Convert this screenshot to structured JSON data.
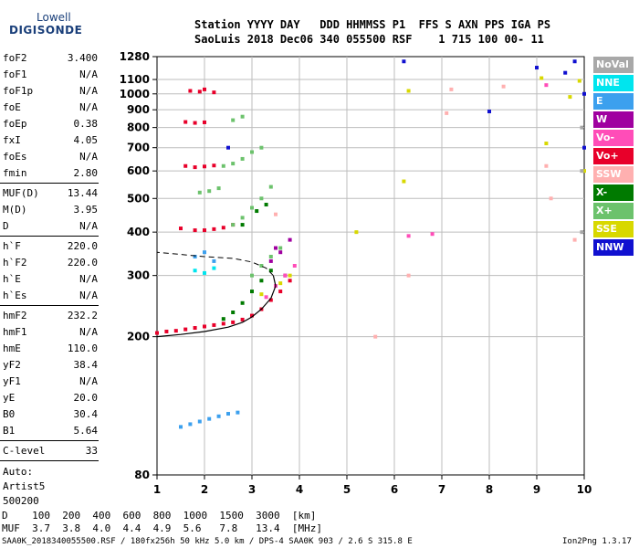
{
  "logo": {
    "line1": "Lowell",
    "line2": "DIGISONDE"
  },
  "header": {
    "row1": "Station YYYY DAY   DDD HHMMSS P1  FFS S AXN PPS IGA PS",
    "row2": "SaoLuis 2018 Dec06 340 055500 RSF    1 715 100 00- 11"
  },
  "params_group1": [
    {
      "name": "foF2",
      "value": "3.400"
    },
    {
      "name": "foF1",
      "value": "N/A"
    },
    {
      "name": "foF1p",
      "value": "N/A"
    },
    {
      "name": "foE",
      "value": "N/A"
    },
    {
      "name": "foEp",
      "value": "0.38"
    },
    {
      "name": "fxI",
      "value": "4.05"
    },
    {
      "name": "foEs",
      "value": "N/A"
    },
    {
      "name": "fmin",
      "value": "2.80"
    }
  ],
  "params_group2": [
    {
      "name": "MUF(D)",
      "value": "13.44"
    },
    {
      "name": "M(D)",
      "value": "3.95"
    },
    {
      "name": "D",
      "value": "N/A"
    }
  ],
  "params_group3": [
    {
      "name": "h`F",
      "value": "220.0"
    },
    {
      "name": "h`F2",
      "value": "220.0"
    },
    {
      "name": "h`E",
      "value": "N/A"
    },
    {
      "name": "h`Es",
      "value": "N/A"
    }
  ],
  "params_group4": [
    {
      "name": "hmF2",
      "value": "232.2"
    },
    {
      "name": "hmF1",
      "value": "N/A"
    },
    {
      "name": "hmE",
      "value": "110.0"
    },
    {
      "name": "yF2",
      "value": "38.4"
    },
    {
      "name": "yF1",
      "value": "N/A"
    },
    {
      "name": "yE",
      "value": "20.0"
    },
    {
      "name": "B0",
      "value": "30.4"
    },
    {
      "name": "B1",
      "value": "5.64"
    }
  ],
  "clevel": {
    "name": "C-level",
    "value": "33"
  },
  "auto_lines": [
    "Auto:",
    "Artist5",
    "500200"
  ],
  "bottom_table": {
    "row1": "D    100  200  400  600  800  1000  1500  3000  [km]",
    "row2": "MUF  3.7  3.8  4.0  4.4  4.9  5.6   7.8   13.4  [MHz]"
  },
  "footer": {
    "left": "SAA0K_2018340055500.RSF / 180fx256h 50 kHz 5.0 km / DPS-4 SAA0K 903 / 2.6 S 315.8 E",
    "right": "Ion2Png 1.3.17"
  },
  "legend": [
    {
      "label": "NoVal",
      "color": "#a8a8a8"
    },
    {
      "label": "NNE",
      "color": "#00e5ee"
    },
    {
      "label": "E",
      "color": "#3ca0ee"
    },
    {
      "label": "W",
      "color": "#a000a0"
    },
    {
      "label": "Vo-",
      "color": "#ff4db8"
    },
    {
      "label": "Vo+",
      "color": "#e8002a"
    },
    {
      "label": "SSW",
      "color": "#ffb0b0"
    },
    {
      "label": "X-",
      "color": "#007a00"
    },
    {
      "label": "X+",
      "color": "#6cc26c"
    },
    {
      "label": "SSE",
      "color": "#d8d800"
    },
    {
      "label": "NNW",
      "color": "#1010d0"
    }
  ],
  "chart_data": {
    "type": "scatter",
    "title": "",
    "xlabel": "",
    "ylabel": "",
    "xlim": [
      1,
      10
    ],
    "ylim": [
      80,
      1280
    ],
    "y_scale": "log",
    "x_ticks": [
      1,
      2,
      3,
      4,
      5,
      6,
      7,
      8,
      9,
      10
    ],
    "y_ticks": [
      80,
      200,
      300,
      400,
      500,
      600,
      700,
      800,
      900,
      1000,
      1100,
      1280
    ],
    "grid": true,
    "series": [
      {
        "color": "#e8002a",
        "points": [
          [
            1.0,
            205
          ],
          [
            1.2,
            207
          ],
          [
            1.4,
            208
          ],
          [
            1.6,
            210
          ],
          [
            1.8,
            212
          ],
          [
            2.0,
            214
          ],
          [
            2.2,
            216
          ],
          [
            2.4,
            218
          ],
          [
            2.6,
            220
          ],
          [
            2.8,
            224
          ],
          [
            3.0,
            230
          ],
          [
            3.2,
            240
          ],
          [
            3.4,
            255
          ],
          [
            3.6,
            270
          ],
          [
            3.8,
            290
          ],
          [
            1.5,
            410
          ],
          [
            1.8,
            405
          ],
          [
            2.0,
            405
          ],
          [
            2.2,
            408
          ],
          [
            2.4,
            412
          ],
          [
            2.6,
            420
          ],
          [
            1.6,
            620
          ],
          [
            1.8,
            615
          ],
          [
            2.0,
            618
          ],
          [
            2.2,
            622
          ],
          [
            1.6,
            830
          ],
          [
            1.8,
            825
          ],
          [
            2.0,
            828
          ],
          [
            1.7,
            1020
          ],
          [
            1.9,
            1015
          ],
          [
            2.0,
            1030
          ],
          [
            2.2,
            1010
          ]
        ]
      },
      {
        "color": "#6cc26c",
        "points": [
          [
            2.4,
            620
          ],
          [
            2.6,
            630
          ],
          [
            2.8,
            650
          ],
          [
            3.0,
            680
          ],
          [
            3.2,
            700
          ],
          [
            2.6,
            420
          ],
          [
            2.8,
            440
          ],
          [
            3.0,
            470
          ],
          [
            3.2,
            500
          ],
          [
            3.4,
            540
          ],
          [
            3.0,
            300
          ],
          [
            3.2,
            320
          ],
          [
            3.4,
            340
          ],
          [
            3.6,
            360
          ],
          [
            1.9,
            520
          ],
          [
            2.1,
            525
          ],
          [
            2.3,
            535
          ],
          [
            2.6,
            840
          ],
          [
            2.8,
            860
          ]
        ]
      },
      {
        "color": "#007a00",
        "points": [
          [
            2.4,
            225
          ],
          [
            2.6,
            235
          ],
          [
            2.8,
            250
          ],
          [
            3.0,
            270
          ],
          [
            3.2,
            290
          ],
          [
            3.4,
            310
          ],
          [
            2.8,
            420
          ],
          [
            3.1,
            460
          ],
          [
            3.3,
            480
          ]
        ]
      },
      {
        "color": "#a000a0",
        "points": [
          [
            3.4,
            330
          ],
          [
            3.6,
            350
          ],
          [
            3.8,
            380
          ],
          [
            3.7,
            300
          ],
          [
            3.5,
            360
          ]
        ]
      },
      {
        "color": "#ff4db8",
        "points": [
          [
            3.3,
            260
          ],
          [
            3.5,
            280
          ],
          [
            3.7,
            300
          ],
          [
            3.9,
            320
          ],
          [
            6.3,
            390
          ],
          [
            6.8,
            395
          ],
          [
            9.2,
            1060
          ]
        ]
      },
      {
        "color": "#3ca0ee",
        "points": [
          [
            1.5,
            110
          ],
          [
            1.7,
            112
          ],
          [
            1.9,
            114
          ],
          [
            2.1,
            116
          ],
          [
            2.3,
            118
          ],
          [
            2.5,
            120
          ],
          [
            2.7,
            121
          ],
          [
            2.0,
            350
          ],
          [
            2.2,
            330
          ],
          [
            1.8,
            340
          ]
        ]
      },
      {
        "color": "#00e5ee",
        "points": [
          [
            1.8,
            310
          ],
          [
            2.0,
            305
          ],
          [
            2.2,
            315
          ]
        ]
      },
      {
        "color": "#d8d800",
        "points": [
          [
            3.6,
            285
          ],
          [
            3.8,
            300
          ],
          [
            3.2,
            265
          ],
          [
            5.2,
            400
          ],
          [
            6.2,
            560
          ],
          [
            6.3,
            1020
          ],
          [
            9.1,
            1110
          ],
          [
            9.2,
            720
          ],
          [
            9.7,
            980
          ],
          [
            9.9,
            1090
          ],
          [
            10,
            600
          ]
        ]
      },
      {
        "color": "#1010d0",
        "points": [
          [
            6.2,
            1240
          ],
          [
            8.0,
            890
          ],
          [
            9.0,
            1190
          ],
          [
            9.6,
            1150
          ],
          [
            10,
            700
          ],
          [
            10,
            1000
          ],
          [
            2.5,
            700
          ],
          [
            9.8,
            1240
          ]
        ]
      },
      {
        "color": "#ffb0b0",
        "points": [
          [
            5.6,
            200
          ],
          [
            6.3,
            300
          ],
          [
            7.1,
            880
          ],
          [
            7.2,
            1030
          ],
          [
            8.3,
            1050
          ],
          [
            9.3,
            500
          ],
          [
            9.2,
            620
          ],
          [
            9.8,
            380
          ],
          [
            3.5,
            450
          ]
        ]
      },
      {
        "color": "#a8a8a8",
        "points": [
          [
            9.95,
            800
          ],
          [
            9.95,
            600
          ],
          [
            9.95,
            400
          ]
        ]
      }
    ],
    "profile_curve": [
      [
        1.0,
        200
      ],
      [
        1.5,
        203
      ],
      [
        2.0,
        207
      ],
      [
        2.5,
        213
      ],
      [
        2.8,
        220
      ],
      [
        3.0,
        228
      ],
      [
        3.2,
        240
      ],
      [
        3.4,
        258
      ],
      [
        3.5,
        280
      ],
      [
        3.45,
        300
      ],
      [
        3.3,
        315
      ],
      [
        3.0,
        328
      ],
      [
        2.6,
        336
      ],
      [
        2.0,
        340
      ],
      [
        1.5,
        345
      ],
      [
        1.0,
        350
      ]
    ]
  }
}
